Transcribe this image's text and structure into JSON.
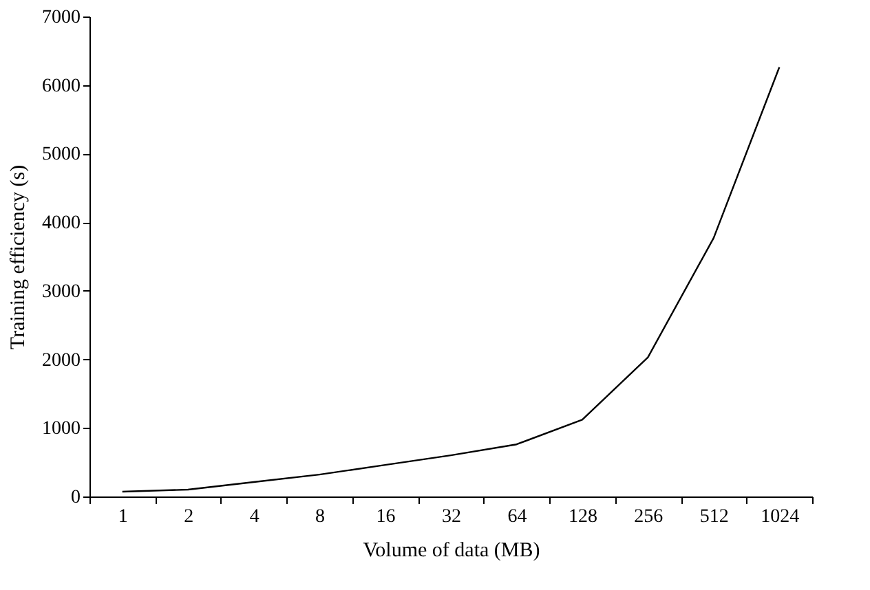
{
  "chart_data": {
    "type": "line",
    "xlabel": "Volume of data (MB)",
    "ylabel": "Training efficiency (s)",
    "categories": [
      "1",
      "2",
      "4",
      "8",
      "16",
      "32",
      "64",
      "128",
      "256",
      "512",
      "1024"
    ],
    "series": [
      {
        "color": "#000000",
        "values": [
          70,
          100,
          210,
          320,
          460,
          600,
          760,
          1120,
          2030,
          3770,
          6260
        ]
      }
    ],
    "ylim": [
      0,
      7000
    ],
    "yticks": [
      0,
      1000,
      2000,
      3000,
      4000,
      5000,
      6000,
      7000
    ],
    "grid": false,
    "legend": false,
    "marker": "none",
    "line_style": "solid"
  }
}
